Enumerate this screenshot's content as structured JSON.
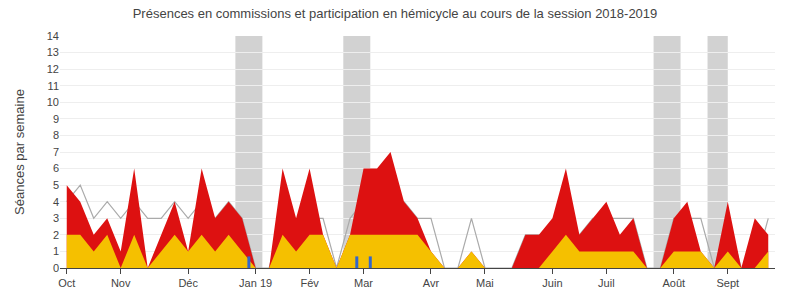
{
  "chart_data": {
    "type": "area",
    "title": "Présences en commissions et participation en hémicycle au cours de la session 2018-2019",
    "ylabel": "Séances par semaine",
    "categories": [
      "Oct",
      null,
      null,
      null,
      "Nov",
      null,
      null,
      null,
      null,
      "Déc",
      null,
      null,
      null,
      null,
      "Jan 19",
      null,
      null,
      null,
      "Fév",
      null,
      null,
      null,
      "Mar",
      null,
      null,
      null,
      null,
      "Avr",
      null,
      null,
      null,
      "Mai",
      null,
      null,
      null,
      null,
      "Juin",
      null,
      null,
      null,
      "Juil",
      null,
      null,
      null,
      null,
      "Août",
      null,
      null,
      null,
      "Sept",
      null,
      null,
      null
    ],
    "ylim": [
      0,
      14
    ],
    "yticks": [
      0,
      1,
      2,
      3,
      4,
      5,
      6,
      7,
      8,
      9,
      10,
      11,
      12,
      13,
      14
    ],
    "grid": true,
    "series": [
      {
        "type": "line",
        "color": "#aaaaaa",
        "values": [
          4,
          5,
          3,
          4,
          3,
          4,
          3,
          3,
          4,
          3,
          4,
          3,
          4,
          3,
          0,
          0,
          3,
          2,
          3,
          3,
          0,
          3,
          4,
          4,
          3,
          4,
          3,
          3,
          0,
          0,
          3,
          0,
          0,
          0,
          2,
          2,
          2,
          3,
          2,
          3,
          3,
          3,
          3,
          0,
          0,
          3,
          3,
          3,
          0,
          3,
          0,
          0,
          3
        ]
      },
      {
        "type": "area",
        "color": "#dd1111",
        "values": [
          5,
          4,
          2,
          3,
          1,
          6,
          0,
          2,
          4,
          1,
          6,
          3,
          4,
          3,
          0,
          0,
          6,
          3,
          6,
          2,
          0,
          2,
          6,
          6,
          7,
          4,
          3,
          1,
          0,
          0,
          1,
          0,
          0,
          0,
          2,
          2,
          3,
          6,
          2,
          3,
          4,
          2,
          3,
          0,
          0,
          3,
          4,
          1,
          0,
          4,
          0,
          3,
          2
        ]
      },
      {
        "type": "area",
        "color": "#f5c000",
        "values": [
          2,
          2,
          1,
          2,
          0,
          2,
          0,
          1,
          2,
          1,
          2,
          1,
          2,
          1,
          0,
          0,
          2,
          1,
          2,
          2,
          0,
          2,
          2,
          2,
          2,
          2,
          2,
          1,
          0,
          0,
          1,
          0,
          0,
          0,
          0,
          0,
          1,
          2,
          1,
          1,
          1,
          1,
          1,
          0,
          0,
          1,
          1,
          1,
          0,
          1,
          0,
          0,
          1
        ]
      }
    ],
    "bands": {
      "color": "#888888",
      "ranges": [
        {
          "x_start": 13,
          "x_end": 15
        },
        {
          "x_start": 21,
          "x_end": 23
        },
        {
          "x_start": 44,
          "x_end": 46
        },
        {
          "x_start": 48,
          "x_end": 49.5
        }
      ]
    },
    "spikes": {
      "color": "#3366cc",
      "marks": [
        {
          "x": 14,
          "y0": 0,
          "y1": 0.7
        },
        {
          "x": 22,
          "y0": 0,
          "y1": 0.7
        },
        {
          "x": 23,
          "y0": 0,
          "y1": 0.7
        }
      ]
    }
  }
}
